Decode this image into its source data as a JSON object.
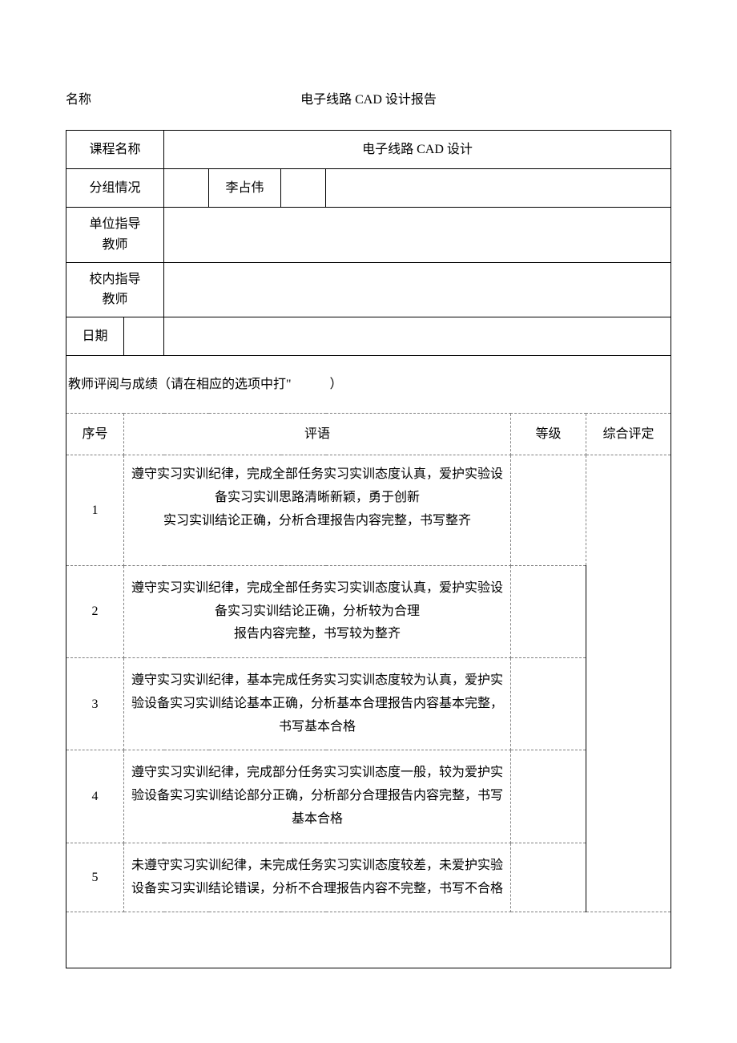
{
  "header": {
    "left_label": "名称",
    "title": "电子线路 CAD 设计报告"
  },
  "info": {
    "course_label": "课程名称",
    "course_value": "电子线路 CAD 设计",
    "group_label": "分组情况",
    "group_name": "李占伟",
    "unit_teacher_label": "单位指导教师",
    "school_teacher_label": "校内指导教师",
    "date_label": "日期"
  },
  "section": {
    "eval_title": "教师评阅与成绩（请在相应的选项中打\"　　　）"
  },
  "eval_headers": {
    "seq": "序号",
    "comment": "评语",
    "grade": "等级",
    "score": "综合评定"
  },
  "rows": [
    {
      "seq": "1",
      "comment": "遵守实习实训纪律，完成全部任务实习实训态度认真，爱护实验设备实习实训思路清晰新颖，勇于创新<br>实习实训结论正确，分析合理报告内容完整，书写整齐"
    },
    {
      "seq": "2",
      "comment": "遵守实习实训纪律，完成全部任务实习实训态度认真，爱护实验设备实习实训结论正确，分析较为合理<br>报告内容完整，书写较为整齐"
    },
    {
      "seq": "3",
      "comment": "遵守实习实训纪律，基本完成任务实习实训态度较为认真，爱护实验设备实习实训结论基本正确，分析基本合理报告内容基本完整，书写基本合格"
    },
    {
      "seq": "4",
      "comment": "遵守实习实训纪律，完成部分任务实习实训态度一般，较为爱护实验设备实习实训结论部分正确，分析部分合理报告内容完整，书写基本合格"
    },
    {
      "seq": "5",
      "comment": "未遵守实习实训纪律，未完成任务实习实训态度较差，未爱护实验设备实习实训结论错误，分析不合理报告内容不完整，书写不合格"
    }
  ]
}
